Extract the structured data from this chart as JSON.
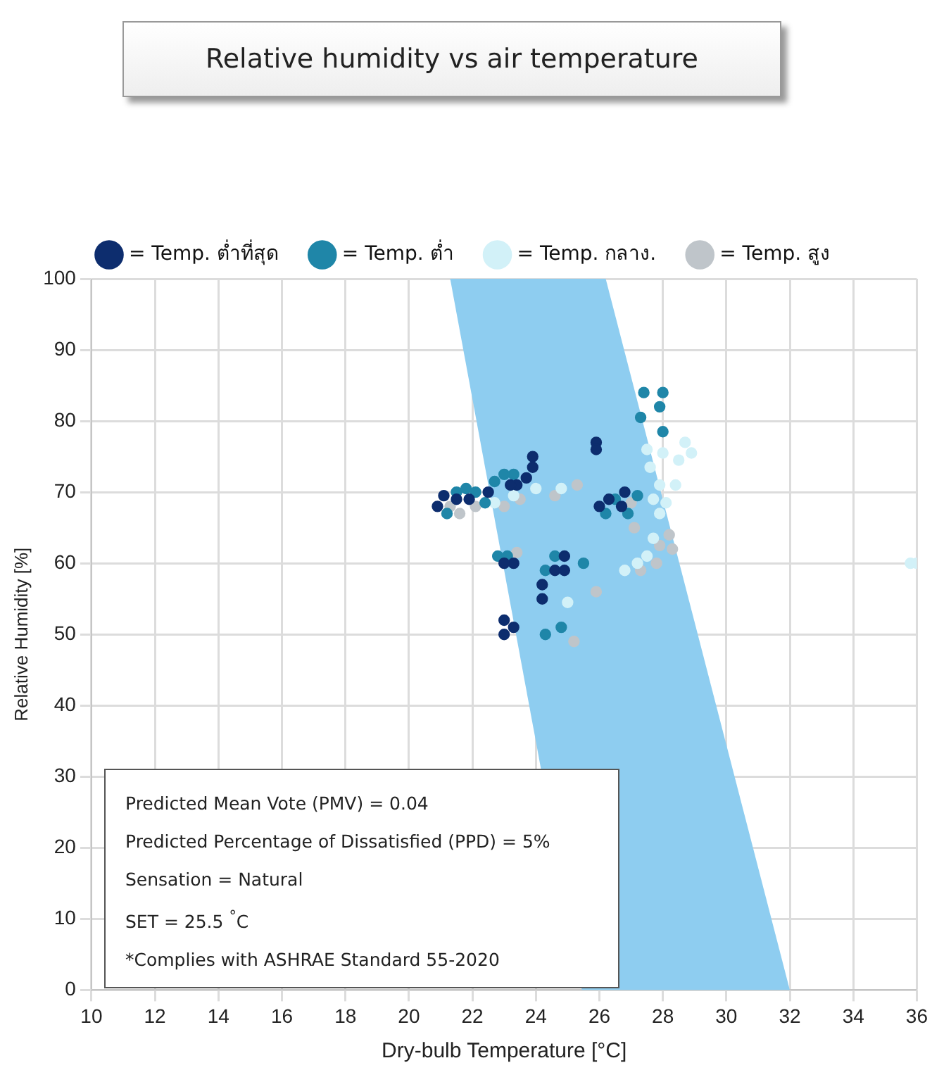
{
  "chart_data": {
    "type": "scatter",
    "title": "Relative humidity vs air temperature",
    "xlabel": "Dry-bulb Temperature [°C]",
    "ylabel": "Relative Humidity [%]",
    "xlim": [
      10,
      36
    ],
    "xticks": [
      10,
      12,
      14,
      16,
      18,
      20,
      22,
      24,
      26,
      28,
      30,
      32,
      34,
      36
    ],
    "ylim": [
      0,
      100
    ],
    "yticks": [
      0,
      10,
      20,
      30,
      40,
      50,
      60,
      70,
      80,
      90,
      100
    ],
    "grid": true,
    "legend": "top",
    "series": [
      {
        "type": "area",
        "color": "#8ecdf0",
        "x": [
          21.3,
          26.2,
          32.0,
          25.45
        ],
        "values": [
          100,
          100,
          0,
          0
        ]
      },
      {
        "name": "= Temp. ต่ำที่สุด",
        "color": "#0d2d6e",
        "marker": "circle",
        "x": [
          25.9,
          25.9,
          23.9,
          23.9,
          23.7,
          23.4,
          23.2,
          21.1,
          20.9,
          21.5,
          21.9,
          22.5,
          26.0,
          26.3,
          26.7,
          26.8,
          23.0,
          23.3,
          24.9,
          24.6,
          24.9,
          24.2,
          24.2,
          23.0,
          23.3,
          23.0
        ],
        "values": [
          77,
          76,
          75,
          73.5,
          72,
          71,
          71,
          69.5,
          68,
          69,
          69,
          70,
          68,
          69,
          68,
          70,
          60,
          60,
          61,
          59,
          59,
          57,
          55,
          52,
          51,
          50
        ]
      },
      {
        "name": "= Temp. ต่ำ",
        "color": "#1f86a8",
        "marker": "circle",
        "x": [
          21.5,
          21.8,
          22.1,
          21.2,
          22.7,
          23.0,
          23.3,
          22.4,
          22.8,
          23.1,
          24.6,
          24.3,
          25.5,
          26.5,
          26.2,
          24.3,
          24.8,
          27.4,
          28.0,
          27.9,
          27.3,
          28.0,
          27.2,
          26.9
        ],
        "values": [
          70,
          70.5,
          70,
          67,
          71.5,
          72.5,
          72.5,
          68.5,
          61,
          61,
          61,
          59,
          60,
          69,
          67,
          50,
          51,
          84,
          84,
          82,
          80.5,
          78.5,
          69.5,
          67
        ]
      },
      {
        "name": "= Temp. กลาง.",
        "color": "#d2f1f8",
        "marker": "circle",
        "x": [
          24.0,
          24.8,
          22.7,
          23.3,
          25.0,
          26.8,
          27.5,
          28.0,
          28.7,
          28.9,
          28.5,
          27.6,
          27.9,
          28.4,
          27.7,
          28.1,
          27.9,
          27.7,
          27.5,
          27.2,
          35.8,
          36.0
        ],
        "values": [
          70.5,
          70.5,
          68.5,
          69.5,
          54.5,
          59,
          76,
          75.5,
          77,
          75.5,
          74.5,
          73.5,
          71,
          71,
          69,
          68.5,
          67,
          63.5,
          61,
          60,
          60,
          60
        ]
      },
      {
        "name": "= Temp. สูง",
        "color": "#bfc5ca",
        "marker": "circle",
        "x": [
          21.3,
          21.6,
          22.1,
          23.0,
          23.5,
          25.3,
          24.6,
          25.9,
          23.4,
          25.2,
          27.0,
          27.1,
          28.2,
          28.3,
          27.9,
          27.3,
          27.8
        ],
        "values": [
          68,
          67,
          68,
          68,
          69,
          71,
          69.5,
          56,
          61.5,
          49,
          68.5,
          65,
          64,
          62,
          62.5,
          59,
          60
        ]
      }
    ],
    "annotations": [
      "Predicted Mean Vote (PMV) = 0.04",
      "Predicted Percentage of Dissatisfied (PPD) = 5%",
      "Sensation = Natural",
      "SET = 25.5 $^{°}$C",
      "*Complies with ASHRAE Standard 55-2020"
    ]
  }
}
